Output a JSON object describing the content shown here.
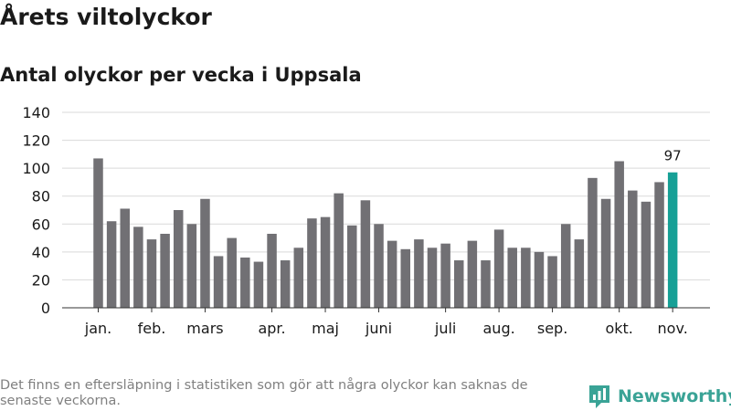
{
  "header": {
    "title": "Årets viltolyckor",
    "subtitle": "Antal olyckor per vecka i Uppsala"
  },
  "footnote": "Det finns en eftersläpning i statistiken som gör att några olyckor kan saknas de senaste veckorna.",
  "brand": {
    "name": "Newsworthy",
    "icon": "newsworthy-logo-icon",
    "color": "#3aa396"
  },
  "chart_data": {
    "type": "bar",
    "title": "",
    "xlabel": "",
    "ylabel": "",
    "ylim": [
      0,
      140
    ],
    "yticks": [
      0,
      20,
      40,
      60,
      80,
      100,
      120,
      140
    ],
    "grid": true,
    "bar_color": "#717074",
    "highlight_color": "#16a096",
    "month_labels": [
      {
        "label": "jan.",
        "week": 1
      },
      {
        "label": "feb.",
        "week": 5
      },
      {
        "label": "mars",
        "week": 9
      },
      {
        "label": "apr.",
        "week": 14
      },
      {
        "label": "maj",
        "week": 18
      },
      {
        "label": "juni",
        "week": 22
      },
      {
        "label": "juli",
        "week": 27
      },
      {
        "label": "aug.",
        "week": 31
      },
      {
        "label": "sep.",
        "week": 35
      },
      {
        "label": "okt.",
        "week": 40
      },
      {
        "label": "nov.",
        "week": 44
      }
    ],
    "series": [
      {
        "weeks": [
          1,
          2,
          3,
          4,
          5,
          6,
          7,
          8,
          9,
          10,
          11,
          12,
          13,
          14,
          15,
          16,
          17,
          18,
          19,
          20,
          21,
          22,
          23,
          24,
          25,
          26,
          27,
          28,
          29,
          30,
          31,
          32,
          33,
          34,
          35,
          36,
          37,
          38,
          39,
          40,
          41,
          42,
          43,
          44
        ],
        "values": [
          107,
          62,
          71,
          58,
          49,
          53,
          70,
          60,
          78,
          37,
          50,
          36,
          33,
          53,
          34,
          43,
          64,
          65,
          82,
          59,
          77,
          60,
          48,
          42,
          49,
          43,
          46,
          34,
          48,
          34,
          56,
          43,
          43,
          40,
          37,
          60,
          49,
          93,
          78,
          105,
          84,
          76,
          90,
          97
        ]
      }
    ],
    "highlight": {
      "week": 44,
      "value": 97,
      "label": "97"
    }
  }
}
